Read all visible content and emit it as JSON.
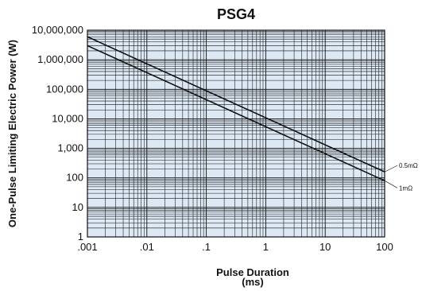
{
  "chart_data": {
    "type": "line",
    "title": "PSG4",
    "xlabel_line1": "Pulse Duration",
    "xlabel_line2": "(ms)",
    "ylabel": "One-Pulse Limiting Electric Power (W)",
    "x_scale": "log",
    "y_scale": "log",
    "xlim": [
      0.001,
      100
    ],
    "ylim": [
      1,
      10000000
    ],
    "x_ticks": [
      0.001,
      0.01,
      0.1,
      1,
      10,
      100
    ],
    "x_tick_labels": [
      ".001",
      ".01",
      ".1",
      "1",
      "10",
      "100"
    ],
    "y_ticks": [
      1,
      10,
      100,
      1000,
      10000,
      100000,
      1000000,
      10000000
    ],
    "y_tick_labels": [
      "1",
      "10",
      "100",
      "1,000",
      "10,000",
      "100,000",
      "1,000,000",
      "10,000,000"
    ],
    "grid": true,
    "plot_background": "#dce8f4",
    "grid_color": "#111111",
    "series": [
      {
        "name": "0.5mΩ",
        "x": [
          0.001,
          100
        ],
        "y": [
          6000000,
          160
        ]
      },
      {
        "name": "1mΩ",
        "x": [
          0.001,
          100
        ],
        "y": [
          3000000,
          80
        ]
      }
    ]
  }
}
